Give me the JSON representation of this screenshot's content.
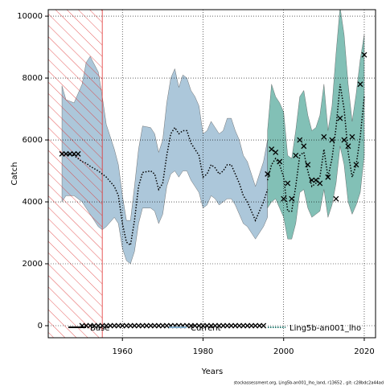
{
  "chart_data": {
    "type": "line",
    "xlabel": "Years",
    "ylabel": "Catch",
    "footer": "stockassessment.org, Ling5b-an001_lho_land, r13652 , git: c28bdc2a44ad",
    "xlim": [
      1941.6,
      2022.8
    ],
    "ylim": [
      -390,
      10210
    ],
    "xticks": [
      1960,
      1980,
      2000,
      2020
    ],
    "yticks": [
      0,
      2000,
      4000,
      6000,
      8000,
      10000
    ],
    "grid": true,
    "hatched_region": [
      1941.6,
      1955
    ],
    "series": [
      {
        "name": "Base",
        "color": "#7fa9c6",
        "x": [
          1945,
          1946,
          1948,
          1950,
          1951,
          1952,
          1954,
          1955,
          1956,
          1958,
          1959,
          1960,
          1961,
          1962,
          1963,
          1964,
          1965,
          1967,
          1968,
          1969,
          1970,
          1971,
          1972,
          1973,
          1974,
          1975,
          1976,
          1977,
          1978,
          1979,
          1980,
          1981,
          1982,
          1983,
          1984,
          1985,
          1986,
          1987,
          1988,
          1989,
          1990,
          1991,
          1992,
          1993,
          1994,
          1995,
          1996
        ],
        "values": [
          5550,
          5550,
          5500,
          5300,
          5250,
          5150,
          5000,
          4900,
          4800,
          4500,
          4200,
          3300,
          2700,
          2600,
          3400,
          4500,
          4950,
          5000,
          4900,
          4400,
          4600,
          5500,
          6200,
          6400,
          6200,
          6300,
          6300,
          5900,
          5700,
          5500,
          4800,
          4900,
          5200,
          5100,
          4900,
          5000,
          5200,
          5200,
          4900,
          4600,
          4200,
          4000,
          3700,
          3400,
          3700,
          4000,
          4400
        ],
        "lower": [
          4000,
          4200,
          4200,
          4000,
          3800,
          3600,
          3200,
          3100,
          3200,
          3500,
          3300,
          2500,
          2100,
          2000,
          2400,
          3300,
          3800,
          3800,
          3700,
          3300,
          3600,
          4500,
          4900,
          5000,
          4800,
          5000,
          5000,
          4700,
          4500,
          4300,
          3800,
          3900,
          4200,
          4100,
          3900,
          4000,
          4100,
          4100,
          3900,
          3600,
          3300,
          3200,
          3000,
          2800,
          3000,
          3200,
          3500
        ],
        "upper": [
          7750,
          7300,
          7200,
          7800,
          8500,
          8700,
          8200,
          7400,
          6500,
          5700,
          5200,
          4200,
          3400,
          3400,
          4500,
          5700,
          6450,
          6400,
          6200,
          5600,
          6000,
          7200,
          8000,
          8300,
          7700,
          8100,
          8000,
          7600,
          7400,
          7100,
          6200,
          6300,
          6600,
          6400,
          6200,
          6300,
          6700,
          6700,
          6300,
          6000,
          5500,
          5300,
          4900,
          4500,
          4900,
          5300,
          6000
        ]
      },
      {
        "name": "Current",
        "color": "#3f9e8f",
        "x": [
          1996,
          1997,
          1998,
          1999,
          2000,
          2001,
          2002,
          2003,
          2004,
          2005,
          2006,
          2007,
          2008,
          2009,
          2010,
          2011,
          2012,
          2013,
          2014,
          2015,
          2016,
          2017,
          2018,
          2019,
          2020
        ],
        "values": [
          4700,
          5200,
          5400,
          5200,
          4800,
          3700,
          3700,
          4500,
          5500,
          5600,
          5000,
          4500,
          4600,
          4800,
          5700,
          4800,
          5400,
          6400,
          7800,
          7000,
          5600,
          4800,
          5200,
          6100,
          7400
        ],
        "lower": [
          3800,
          4000,
          4100,
          3800,
          3500,
          2800,
          2800,
          3300,
          4300,
          4400,
          3800,
          3500,
          3600,
          3700,
          4400,
          3500,
          3900,
          4600,
          5800,
          5200,
          4000,
          3600,
          3900,
          4300,
          5500
        ],
        "upper": [
          6300,
          7800,
          7400,
          7200,
          6900,
          5500,
          5400,
          6300,
          7400,
          7600,
          6800,
          6300,
          6400,
          6800,
          7800,
          6300,
          7100,
          8800,
          10300,
          9400,
          7800,
          6600,
          7500,
          8600,
          9400
        ]
      },
      {
        "name": "Ling5b-an001_lho",
        "color": "#000000",
        "x": [
          1945,
          1946,
          1947,
          1948,
          1949,
          1950,
          1951,
          1952,
          1953,
          1954,
          1955,
          1956,
          1957,
          1958,
          1959,
          1960,
          1961,
          1962,
          1963,
          1964,
          1965,
          1966,
          1967,
          1968,
          1969,
          1970,
          1971,
          1972,
          1973,
          1974,
          1975,
          1976,
          1977,
          1978,
          1979,
          1980,
          1981,
          1982,
          1983,
          1984,
          1985,
          1986,
          1987,
          1988,
          1989,
          1990,
          1991,
          1992,
          1993,
          1994,
          1995,
          1996,
          1997,
          1998,
          1999,
          2000,
          2001,
          2002,
          2003,
          2004,
          2005,
          2006,
          2007,
          2008,
          2009,
          2010,
          2011,
          2012,
          2013,
          2014,
          2015,
          2016,
          2017,
          2018,
          2019,
          2020
        ],
        "values": [
          5550,
          5550,
          5550,
          5550,
          5550,
          0,
          0,
          0,
          0,
          0,
          0,
          0,
          0,
          0,
          0,
          0,
          0,
          0,
          0,
          0,
          0,
          0,
          0,
          0,
          0,
          0,
          0,
          0,
          0,
          0,
          0,
          0,
          0,
          0,
          0,
          0,
          0,
          0,
          0,
          0,
          0,
          0,
          0,
          0,
          0,
          0,
          0,
          0,
          0,
          0,
          0,
          4900,
          5700,
          5600,
          5300,
          4100,
          4600,
          4100,
          5500,
          6000,
          5800,
          5200,
          4700,
          4700,
          4600,
          6100,
          4800,
          6000,
          4100,
          6700,
          6000,
          5800,
          6100,
          5200,
          7800,
          8750
        ]
      }
    ]
  }
}
